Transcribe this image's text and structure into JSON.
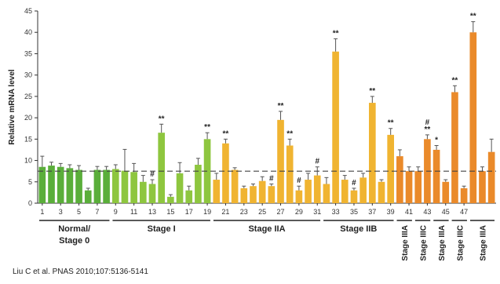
{
  "chart_data": {
    "type": "bar",
    "ylabel": "Relative mRNA level",
    "ylim": [
      0,
      45
    ],
    "yticks": [
      0,
      5,
      10,
      15,
      20,
      25,
      30,
      35,
      40,
      45
    ],
    "x_tick_labels": [
      "1",
      "3",
      "5",
      "7",
      "9",
      "11",
      "13",
      "15",
      "17",
      "19",
      "21",
      "23",
      "25",
      "27",
      "29",
      "31",
      "33",
      "35",
      "37",
      "39",
      "41",
      "43",
      "45",
      "47"
    ],
    "reference_line": 7.5,
    "values": [
      8.5,
      8.8,
      8.5,
      8.2,
      7.8,
      3.0,
      7.8,
      7.8,
      8.0,
      7.6,
      7.3,
      5.0,
      4.5,
      16.5,
      1.5,
      7.0,
      3.0,
      9.0,
      15.0,
      5.5,
      14.0,
      7.8,
      3.5,
      4.0,
      5.2,
      4.0,
      19.5,
      13.5,
      3.0,
      5.5,
      6.5,
      4.5,
      35.5,
      5.5,
      3.0,
      6.0,
      23.5,
      5.0,
      16.0,
      11.0,
      7.5,
      7.5,
      15.0,
      12.5,
      5.0,
      26.0,
      3.5,
      40.0,
      7.5,
      12.0
    ],
    "errors": [
      2.5,
      0.8,
      0.8,
      0.8,
      1.0,
      0.5,
      0.8,
      0.8,
      1.0,
      5.0,
      2.0,
      1.5,
      1.0,
      2.0,
      0.5,
      2.5,
      1.0,
      1.5,
      1.5,
      1.5,
      1.0,
      0.5,
      0.5,
      0.5,
      1.0,
      0.5,
      2.0,
      1.5,
      1.0,
      1.5,
      2.0,
      1.5,
      3.0,
      1.0,
      0.5,
      1.0,
      1.5,
      0.5,
      1.5,
      1.5,
      1.0,
      1.0,
      1.0,
      1.0,
      0.5,
      1.5,
      0.5,
      2.5,
      1.0,
      3.0
    ],
    "colors": [
      "#5aae3a",
      "#5aae3a",
      "#5aae3a",
      "#5aae3a",
      "#5aae3a",
      "#5aae3a",
      "#5aae3a",
      "#5aae3a",
      "#8ec63f",
      "#8ec63f",
      "#8ec63f",
      "#8ec63f",
      "#8ec63f",
      "#8ec63f",
      "#8ec63f",
      "#8ec63f",
      "#8ec63f",
      "#8ec63f",
      "#8ec63f",
      "#f0b431",
      "#f0b431",
      "#f0b431",
      "#f0b431",
      "#f0b431",
      "#f0b431",
      "#f0b431",
      "#f0b431",
      "#f0b431",
      "#f0b431",
      "#f0b431",
      "#f0b431",
      "#f0b431",
      "#f0b431",
      "#f0b431",
      "#f0b431",
      "#f0b431",
      "#f0b431",
      "#f0b431",
      "#f0b431",
      "#ea8a2a",
      "#ea8a2a",
      "#ea8a2a",
      "#ea8a2a",
      "#ea8a2a",
      "#ea8a2a",
      "#ea8a2a",
      "#ea8a2a",
      "#ea8a2a",
      "#ea8a2a",
      "#ea8a2a"
    ],
    "annotations": [
      {
        "bar": 13,
        "text": "**"
      },
      {
        "bar": 18,
        "text": "**"
      },
      {
        "bar": 20,
        "text": "**"
      },
      {
        "bar": 26,
        "text": "**"
      },
      {
        "bar": 27,
        "text": "**"
      },
      {
        "bar": 32,
        "text": "**"
      },
      {
        "bar": 36,
        "text": "**"
      },
      {
        "bar": 38,
        "text": "**"
      },
      {
        "bar": 42,
        "text": "**"
      },
      {
        "bar": 43,
        "text": "*"
      },
      {
        "bar": 45,
        "text": "**"
      },
      {
        "bar": 47,
        "text": "**"
      },
      {
        "bar": 12,
        "text": "#"
      },
      {
        "bar": 25,
        "text": "#"
      },
      {
        "bar": 28,
        "text": "#"
      },
      {
        "bar": 30,
        "text": "#"
      },
      {
        "bar": 34,
        "text": "#"
      },
      {
        "bar": 42,
        "text": "#"
      }
    ],
    "groups": [
      {
        "label": "Normal/ Stage 0",
        "lines": [
          "Normal/",
          "Stage 0"
        ],
        "from": 0,
        "to": 7
      },
      {
        "label": "Stage I",
        "from": 8,
        "to": 18
      },
      {
        "label": "Stage IIA",
        "from": 19,
        "to": 30
      },
      {
        "label": "Stage IIB",
        "from": 31,
        "to": 38
      },
      {
        "label": "Stage IIIA",
        "from": 39,
        "to": 40,
        "vertical": true
      },
      {
        "label": "Stage IIIC",
        "from": 41,
        "to": 42,
        "vertical": true
      },
      {
        "label": "Stage IIIA",
        "from": 43,
        "to": 44,
        "vertical": true
      },
      {
        "label": "Stage IIIC",
        "from": 45,
        "to": 46,
        "vertical": true
      },
      {
        "label": "Stage IIIA",
        "from": 47,
        "to": 49,
        "vertical": true
      }
    ]
  },
  "citation": "Liu C et al. PNAS 2010;107:5136-5141"
}
